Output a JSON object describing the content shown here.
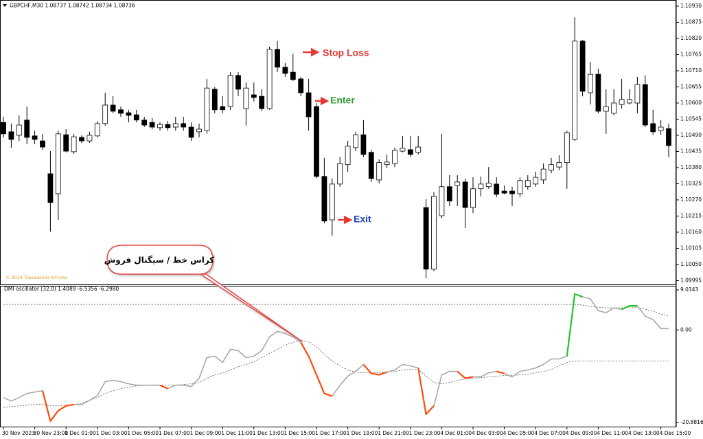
{
  "chart_data": [
    {
      "type": "candlestick",
      "title": "GBPCHF,M30 1.08737 1.08742 1.08734 1.08736",
      "watermark": "© 2024 TopLessons.ir/Forex",
      "annotations": [
        "Stop Loss",
        "Enter",
        "Exit",
        "کراس خط / سیگنال فروش"
      ],
      "up_color": "#ffffff",
      "down_color": "#000000",
      "edge_color": "#000000",
      "ylim": [
        1.09982,
        1.10944
      ],
      "yticks": [
        {
          "value": 1.1093,
          "label": "1.10930"
        },
        1.10875,
        {
          "value": 1.1082,
          "label": "1.10820"
        },
        1.10765,
        {
          "value": 1.1071,
          "label": "1.10710"
        },
        1.10655,
        {
          "value": 1.106,
          "label": "1.10600"
        },
        1.10545,
        {
          "value": 1.1049,
          "label": "1.10490"
        },
        1.10435,
        {
          "value": 1.1038,
          "label": "1.10380"
        },
        1.10325,
        {
          "value": 1.1027,
          "label": "1.10270"
        },
        1.10215,
        {
          "value": 1.1016,
          "label": "1.10160"
        },
        1.10105,
        {
          "value": 1.1005,
          "label": "1.10050"
        },
        1.09995
      ],
      "open": [
        1.10534,
        1.10502,
        1.1049,
        1.10542,
        1.10488,
        1.10471,
        1.10359,
        1.10291,
        1.10492,
        1.10434,
        1.10483,
        1.10471,
        1.10488,
        1.1053,
        1.10593,
        1.10577,
        1.10567,
        1.1056,
        1.10542,
        1.10534,
        1.10516,
        1.10527,
        1.10518,
        1.1053,
        1.10518,
        1.10502,
        1.10506,
        1.10647,
        1.10588,
        1.10588,
        1.10694,
        1.10581,
        1.10628,
        1.10623,
        1.10581,
        1.10783,
        1.10722,
        1.10705,
        1.10682,
        1.10635,
        1.10588,
        1.1035,
        1.10202,
        1.10324,
        1.1039,
        1.10448,
        1.10492,
        1.10432,
        1.10338,
        1.1039,
        1.10394,
        1.10436,
        1.10441,
        1.10432,
        1.10244,
        1.10034,
        1.10216,
        1.10315,
        1.10319,
        1.10331,
        1.10244,
        1.10308,
        1.10315,
        1.10324,
        1.103,
        1.103,
        1.10291,
        1.10315,
        1.10324,
        1.10338,
        1.10371,
        1.10382,
        1.10397,
        1.10476,
        1.10811,
        1.10635,
        1.10698,
        1.10572,
        1.10565,
        1.10595,
        1.106,
        1.106,
        1.10663,
        1.1053,
        1.10506,
        1.10513
      ],
      "high": [
        1.10553,
        1.1053,
        1.10558,
        1.10588,
        1.10506,
        1.10495,
        1.10436,
        1.10506,
        1.10511,
        1.10495,
        1.1049,
        1.10502,
        1.10539,
        1.10635,
        1.10623,
        1.10588,
        1.10577,
        1.10577,
        1.10553,
        1.10549,
        1.10534,
        1.10539,
        1.10553,
        1.10553,
        1.10534,
        1.1053,
        1.10682,
        1.10654,
        1.10623,
        1.10705,
        1.10705,
        1.1067,
        1.1067,
        1.10647,
        1.10792,
        1.10811,
        1.10736,
        1.10768,
        1.10689,
        1.10682,
        1.106,
        1.10413,
        1.10343,
        1.10416,
        1.10471,
        1.10502,
        1.10542,
        1.10441,
        1.10408,
        1.10425,
        1.10448,
        1.10488,
        1.10488,
        1.10488,
        1.10273,
        1.10296,
        1.10495,
        1.10354,
        1.10354,
        1.10343,
        1.10347,
        1.1035,
        1.10382,
        1.10347,
        1.10319,
        1.10315,
        1.10347,
        1.10354,
        1.10366,
        1.10394,
        1.10413,
        1.10422,
        1.10506,
        1.10892,
        1.10815,
        1.1074,
        1.10717,
        1.10647,
        1.10647,
        1.10682,
        1.10647,
        1.10689,
        1.10694,
        1.10577,
        1.10542,
        1.1053
      ],
      "low": [
        1.10483,
        1.10448,
        1.10471,
        1.1046,
        1.1046,
        1.10441,
        1.10162,
        1.10202,
        1.10432,
        1.10427,
        1.10464,
        1.10464,
        1.10483,
        1.10523,
        1.10565,
        1.10553,
        1.10534,
        1.10534,
        1.10518,
        1.10511,
        1.10506,
        1.10506,
        1.10506,
        1.10506,
        1.10471,
        1.10483,
        1.10495,
        1.10565,
        1.10565,
        1.10577,
        1.10623,
        1.10523,
        1.10605,
        1.10572,
        1.10577,
        1.10705,
        1.10689,
        1.10675,
        1.10623,
        1.10506,
        1.10343,
        1.1019,
        1.10148,
        1.10315,
        1.10366,
        1.10436,
        1.10416,
        1.10331,
        1.10326,
        1.10378,
        1.10382,
        1.10432,
        1.10416,
        1.10425,
        1.10003,
        1.10027,
        1.10207,
        1.10249,
        1.10249,
        1.10174,
        1.10225,
        1.10282,
        1.10308,
        1.10279,
        1.10289,
        1.10249,
        1.10279,
        1.10305,
        1.10315,
        1.10324,
        1.10361,
        1.10371,
        1.10308,
        1.10471,
        1.10623,
        1.10595,
        1.10565,
        1.10495,
        1.10558,
        1.10581,
        1.10595,
        1.10565,
        1.10518,
        1.10492,
        1.10492,
        1.10416
      ],
      "close": [
        1.10495,
        1.10476,
        1.10525,
        1.10483,
        1.10476,
        1.1045,
        1.10261,
        1.10495,
        1.10436,
        1.10485,
        1.10471,
        1.1049,
        1.1053,
        1.10593,
        1.10572,
        1.10565,
        1.10558,
        1.10542,
        1.10525,
        1.10518,
        1.10527,
        1.10516,
        1.1053,
        1.10518,
        1.10483,
        1.10511,
        1.10651,
        1.10577,
        1.10577,
        1.10694,
        1.10647,
        1.10651,
        1.10619,
        1.10581,
        1.10783,
        1.10722,
        1.10701,
        1.1068,
        1.10635,
        1.10553,
        1.1035,
        1.10198,
        1.10324,
        1.10394,
        1.10453,
        1.10492,
        1.10425,
        1.10343,
        1.10397,
        1.10399,
        1.10439,
        1.10446,
        1.10425,
        1.1045,
        1.10034,
        1.10282,
        1.10315,
        1.10266,
        1.10331,
        1.10244,
        1.10308,
        1.10324,
        1.10327,
        1.10289,
        1.10293,
        1.10291,
        1.10336,
        1.10336,
        1.10347,
        1.10375,
        1.1039,
        1.10397,
        1.10499,
        1.10811,
        1.1064,
        1.10698,
        1.10572,
        1.10588,
        1.106,
        1.10612,
        1.10612,
        1.10663,
        1.10525,
        1.10502,
        1.10518,
        1.10455
      ]
    },
    {
      "type": "line",
      "title": "DMI oscillator (32,0) 1.4089 -6.5356 -6.2980",
      "ylim": [
        -21.81,
        9.81
      ],
      "yticks": [
        9.0343,
        {
          "value": 0,
          "label": "0.00"
        },
        -20.8816
      ],
      "categories": [
        "30 Nov 2023",
        null,
        null,
        null,
        "30 Nov 23:00",
        null,
        null,
        null,
        "1 Dec 01:00",
        null,
        null,
        null,
        "1 Dec 03:00",
        null,
        null,
        null,
        "1 Dec 05:00",
        null,
        null,
        null,
        "1 Dec 07:00",
        null,
        null,
        null,
        "1 Dec 09:00",
        null,
        null,
        null,
        "1 Dec 11:00",
        null,
        null,
        null,
        "1 Dec 13:00",
        null,
        null,
        null,
        "1 Dec 15:00",
        null,
        null,
        null,
        "1 Dec 17:00",
        null,
        null,
        null,
        "1 Dec 19:00",
        null,
        null,
        null,
        "1 Dec 21:00",
        null,
        null,
        null,
        "1 Dec 23:00",
        null,
        null,
        null,
        "4 Dec 01:00",
        null,
        null,
        null,
        "4 Dec 03:00",
        null,
        null,
        null,
        "4 Dec 05:00",
        null,
        null,
        null,
        "4 Dec 07:00",
        null,
        null,
        null,
        "4 Dec 09:00",
        null,
        null,
        null,
        "4 Dec 11:00",
        null,
        null,
        null,
        "4 Dec 13:00",
        null,
        null,
        null,
        "4 Dec 15:00",
        null
      ],
      "series": [
        {
          "color": "#555555",
          "dash": true,
          "values": [
            -17.45,
            -17.29,
            -17.13,
            -16.98,
            -16.82,
            -16.82,
            -17.13,
            -17.13,
            -16.98,
            -16.82,
            -16.51,
            -15.89,
            -15.26,
            -14.33,
            -13.71,
            -13.24,
            -12.93,
            -12.62,
            -12.46,
            -12.46,
            -12.46,
            -12.46,
            -12.46,
            -12.31,
            -12.15,
            -11.84,
            -10.9,
            -10.12,
            -9.66,
            -9.03,
            -8.26,
            -7.79,
            -7.17,
            -6.23,
            -5.3,
            -4.36,
            -3.43,
            -2.8,
            -2.34,
            -2.65,
            -3.89,
            -5.45,
            -7.01,
            -8.1,
            -9.03,
            -9.5,
            -9.66,
            -9.66,
            -9.66,
            -9.5,
            -9.35,
            -9.03,
            -8.88,
            -8.88,
            -10.44,
            -11.84,
            -12.15,
            -11.84,
            -11.37,
            -11.06,
            -10.9,
            -10.75,
            -10.59,
            -10.44,
            -10.28,
            -10.28,
            -10.12,
            -9.97,
            -9.66,
            -9.35,
            -8.88,
            -8.1,
            -7.32,
            -7.01,
            -7.01,
            -7.01,
            -7.01,
            -7.01,
            -7.01,
            -7.01,
            -7.01,
            -7.01,
            -7.01,
            -7.01,
            -7.01,
            -7.01
          ]
        },
        {
          "color": "#555555",
          "dash": true,
          "values": [
            5.76,
            5.76,
            5.76,
            5.76,
            5.76,
            5.76,
            5.76,
            5.76,
            5.76,
            5.76,
            5.76,
            5.76,
            5.76,
            5.76,
            5.76,
            5.76,
            5.76,
            5.76,
            5.76,
            5.76,
            5.76,
            5.76,
            5.76,
            5.76,
            5.76,
            5.76,
            5.76,
            5.76,
            5.76,
            5.76,
            5.76,
            5.76,
            5.76,
            5.76,
            5.76,
            5.76,
            5.76,
            5.76,
            5.76,
            5.76,
            5.76,
            5.76,
            5.76,
            5.76,
            5.76,
            5.76,
            5.76,
            5.76,
            5.76,
            5.76,
            5.76,
            5.76,
            5.76,
            5.76,
            5.76,
            5.76,
            5.76,
            5.76,
            5.76,
            5.76,
            5.76,
            5.76,
            5.76,
            5.76,
            5.76,
            5.76,
            5.76,
            5.76,
            5.76,
            5.76,
            5.76,
            5.76,
            5.76,
            5.76,
            5.61,
            5.3,
            5.14,
            4.98,
            4.98,
            4.98,
            5.14,
            5.14,
            4.67,
            4.21,
            3.58,
            3.12
          ]
        },
        {
          "color": "#a8a8a8",
          "dash": false,
          "values": [
            -15.26,
            -16.04,
            -15.26,
            -14.33,
            -14.02,
            -13.71,
            -20.56,
            -18.22,
            -17.13,
            -16.82,
            -16.82,
            -15.89,
            -14.8,
            -11.68,
            -11.37,
            -11.68,
            -12.15,
            -12.46,
            -12.46,
            -12.46,
            -12.46,
            -13.24,
            -12.46,
            -12.46,
            -12.77,
            -10.9,
            -6.23,
            -5.92,
            -7.32,
            -4.36,
            -4.67,
            -6.23,
            -5.92,
            -4.67,
            -1.56,
            -0.31,
            -0.78,
            -1.56,
            -2.8,
            -5.92,
            -10.12,
            -14.33,
            -14.95,
            -12.46,
            -10.44,
            -9.35,
            -7.79,
            -9.81,
            -10.12,
            -9.5,
            -9.03,
            -7.79,
            -8.1,
            -8.57,
            -19.0,
            -17.13,
            -10.12,
            -9.35,
            -9.35,
            -10.9,
            -10.59,
            -10.59,
            -9.66,
            -9.35,
            -9.81,
            -10.59,
            -9.35,
            -9.03,
            -8.57,
            -7.79,
            -6.54,
            -6.54,
            -5.92,
            8.1,
            7.48,
            7.01,
            4.36,
            3.89,
            4.98,
            4.67,
            5.45,
            5.45,
            3.12,
            2.34,
            0.31,
            0.31
          ]
        },
        {
          "color": "#ff4a0a",
          "dash": false,
          "values": [
            null,
            null,
            null,
            null,
            null,
            -13.71,
            -20.56,
            -18.22,
            -17.13,
            -16.82,
            null,
            null,
            null,
            null,
            null,
            null,
            null,
            null,
            null,
            null,
            -12.46,
            -13.24,
            null,
            null,
            null,
            null,
            null,
            null,
            null,
            null,
            null,
            null,
            null,
            null,
            null,
            null,
            null,
            null,
            -2.8,
            -5.92,
            -10.12,
            -14.33,
            -14.95,
            null,
            null,
            null,
            -7.79,
            -9.81,
            -10.12,
            -9.5,
            null,
            null,
            null,
            -8.57,
            -19.0,
            -17.13,
            null,
            null,
            -9.35,
            -10.9,
            -10.59,
            null,
            null,
            -9.35,
            -9.81,
            null,
            null,
            null,
            null,
            null,
            null,
            null,
            null,
            null,
            null,
            null,
            null,
            null,
            null,
            null,
            null,
            null,
            null,
            null,
            null,
            null
          ]
        },
        {
          "color": "#25c22b",
          "dash": false,
          "values": [
            null,
            null,
            null,
            null,
            null,
            null,
            null,
            null,
            null,
            null,
            null,
            null,
            null,
            null,
            null,
            null,
            null,
            null,
            null,
            null,
            null,
            null,
            null,
            null,
            null,
            null,
            null,
            null,
            null,
            null,
            null,
            null,
            null,
            null,
            null,
            null,
            null,
            null,
            null,
            null,
            null,
            null,
            null,
            null,
            null,
            null,
            null,
            null,
            null,
            null,
            null,
            null,
            null,
            null,
            null,
            null,
            null,
            null,
            null,
            null,
            null,
            null,
            null,
            null,
            null,
            null,
            null,
            null,
            null,
            null,
            null,
            null,
            -5.92,
            8.1,
            7.48,
            null,
            null,
            null,
            null,
            4.67,
            5.45,
            5.45,
            null,
            null,
            null,
            null
          ]
        }
      ]
    }
  ]
}
